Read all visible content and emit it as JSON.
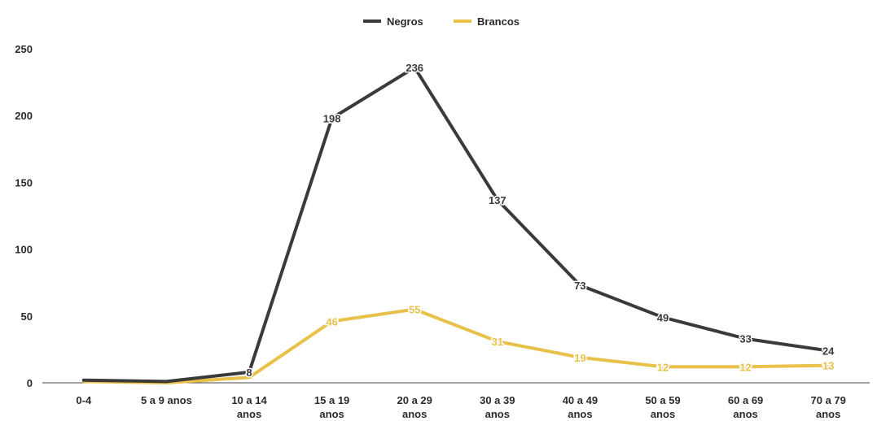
{
  "chart_data": {
    "type": "line",
    "categories": [
      "0-4",
      "5 a 9 anos",
      "10 a 14 anos",
      "15 a 19 anos",
      "20 a 29 anos",
      "30 a 39 anos",
      "40 a 49 anos",
      "50 a 59 anos",
      "60 a 69 anos",
      "70 a 79 anos"
    ],
    "series": [
      {
        "name": "Negros",
        "color": "#3a3a3a",
        "values": [
          2,
          1,
          8,
          198,
          236,
          137,
          73,
          49,
          33,
          24
        ],
        "labels": [
          "",
          "",
          "8",
          "198",
          "236",
          "137",
          "73",
          "49",
          "33",
          "24"
        ]
      },
      {
        "name": "Brancos",
        "color": "#e8c14a",
        "values": [
          1,
          0,
          4,
          46,
          55,
          31,
          19,
          12,
          12,
          13
        ],
        "labels": [
          "",
          "",
          "",
          "46",
          "55",
          "31",
          "19",
          "12",
          "12",
          "13"
        ]
      }
    ],
    "y_ticks": [
      "0",
      "50",
      "100",
      "150",
      "200",
      "250"
    ],
    "ylim": [
      0,
      250
    ],
    "grid": false,
    "legend_position": "top-center",
    "title": "",
    "xlabel": "",
    "ylabel": ""
  }
}
